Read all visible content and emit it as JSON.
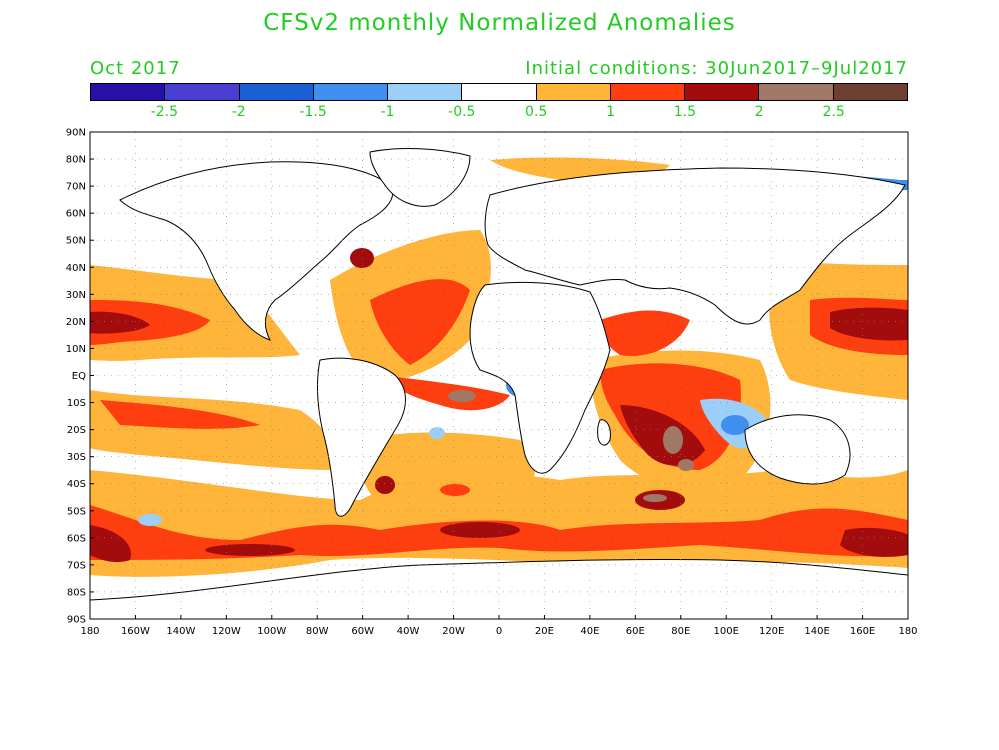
{
  "title": "CFSv2 monthly Normalized Anomalies",
  "valid_month": "Oct 2017",
  "initial_conditions": "Initial conditions: 30Jun2017–9Jul2017",
  "colorbar": {
    "colors": [
      "#2a0ea8",
      "#4a3fd2",
      "#1a5fd6",
      "#3f8ff0",
      "#9ccff8",
      "#ffffff",
      "#ffb43a",
      "#ff3e10",
      "#a30c0c",
      "#a07868",
      "#6e3e30"
    ],
    "labels": [
      "-2.5",
      "-2",
      "-1.5",
      "-1",
      "-0.5",
      "0.5",
      "1",
      "1.5",
      "2",
      "2.5"
    ]
  },
  "lat_labels": [
    "90N",
    "80N",
    "70N",
    "60N",
    "50N",
    "40N",
    "30N",
    "20N",
    "10N",
    "EQ",
    "10S",
    "20S",
    "30S",
    "40S",
    "50S",
    "60S",
    "70S",
    "80S",
    "90S"
  ],
  "lon_labels": [
    "180",
    "160W",
    "140W",
    "120W",
    "100W",
    "80W",
    "60W",
    "40W",
    "20W",
    "0",
    "20E",
    "40E",
    "60E",
    "80E",
    "100E",
    "120E",
    "140E",
    "160E",
    "180"
  ]
}
